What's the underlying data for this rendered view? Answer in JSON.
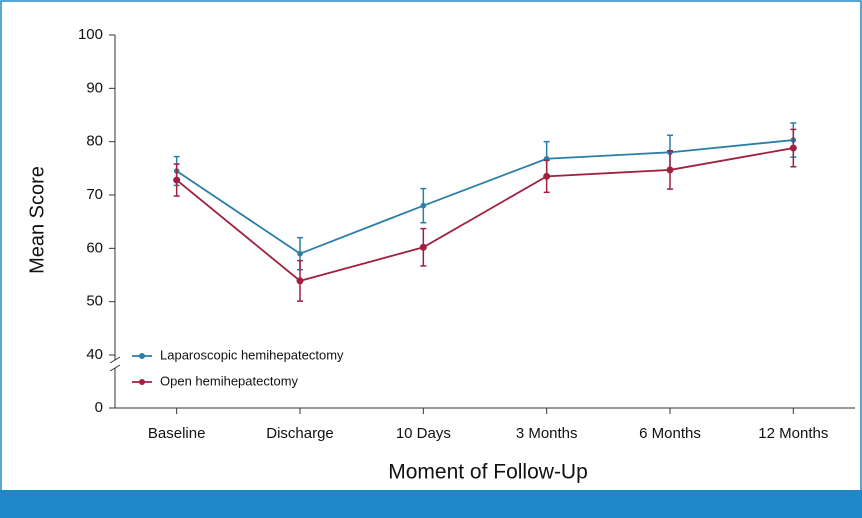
{
  "chart_data": {
    "type": "line",
    "x_label": "Moment of Follow-Up",
    "y_label": "Mean Score",
    "categories": [
      "Baseline",
      "Discharge",
      "10 Days",
      "3 Months",
      "6 Months",
      "12 Months"
    ],
    "series": [
      {
        "name": "Laparoscopic hemihepatectomy",
        "color": "#2b7ea6",
        "values": [
          74.5,
          59,
          68,
          76.8,
          78,
          80.3
        ],
        "errors": [
          2.7,
          3,
          3.2,
          3.2,
          3.2,
          3.2
        ]
      },
      {
        "name": "Open hemihepatectomy",
        "color": "#a0203f",
        "values": [
          72.8,
          53.9,
          60.2,
          73.5,
          74.7,
          78.8
        ],
        "errors": [
          3,
          3.8,
          3.5,
          3,
          3.6,
          3.5
        ]
      }
    ],
    "ylim": [
      0,
      100
    ],
    "ybreak": [
      0,
      40
    ],
    "yticks": [
      0,
      40,
      50,
      60,
      70,
      80,
      90,
      100
    ],
    "legend": "lower left"
  }
}
